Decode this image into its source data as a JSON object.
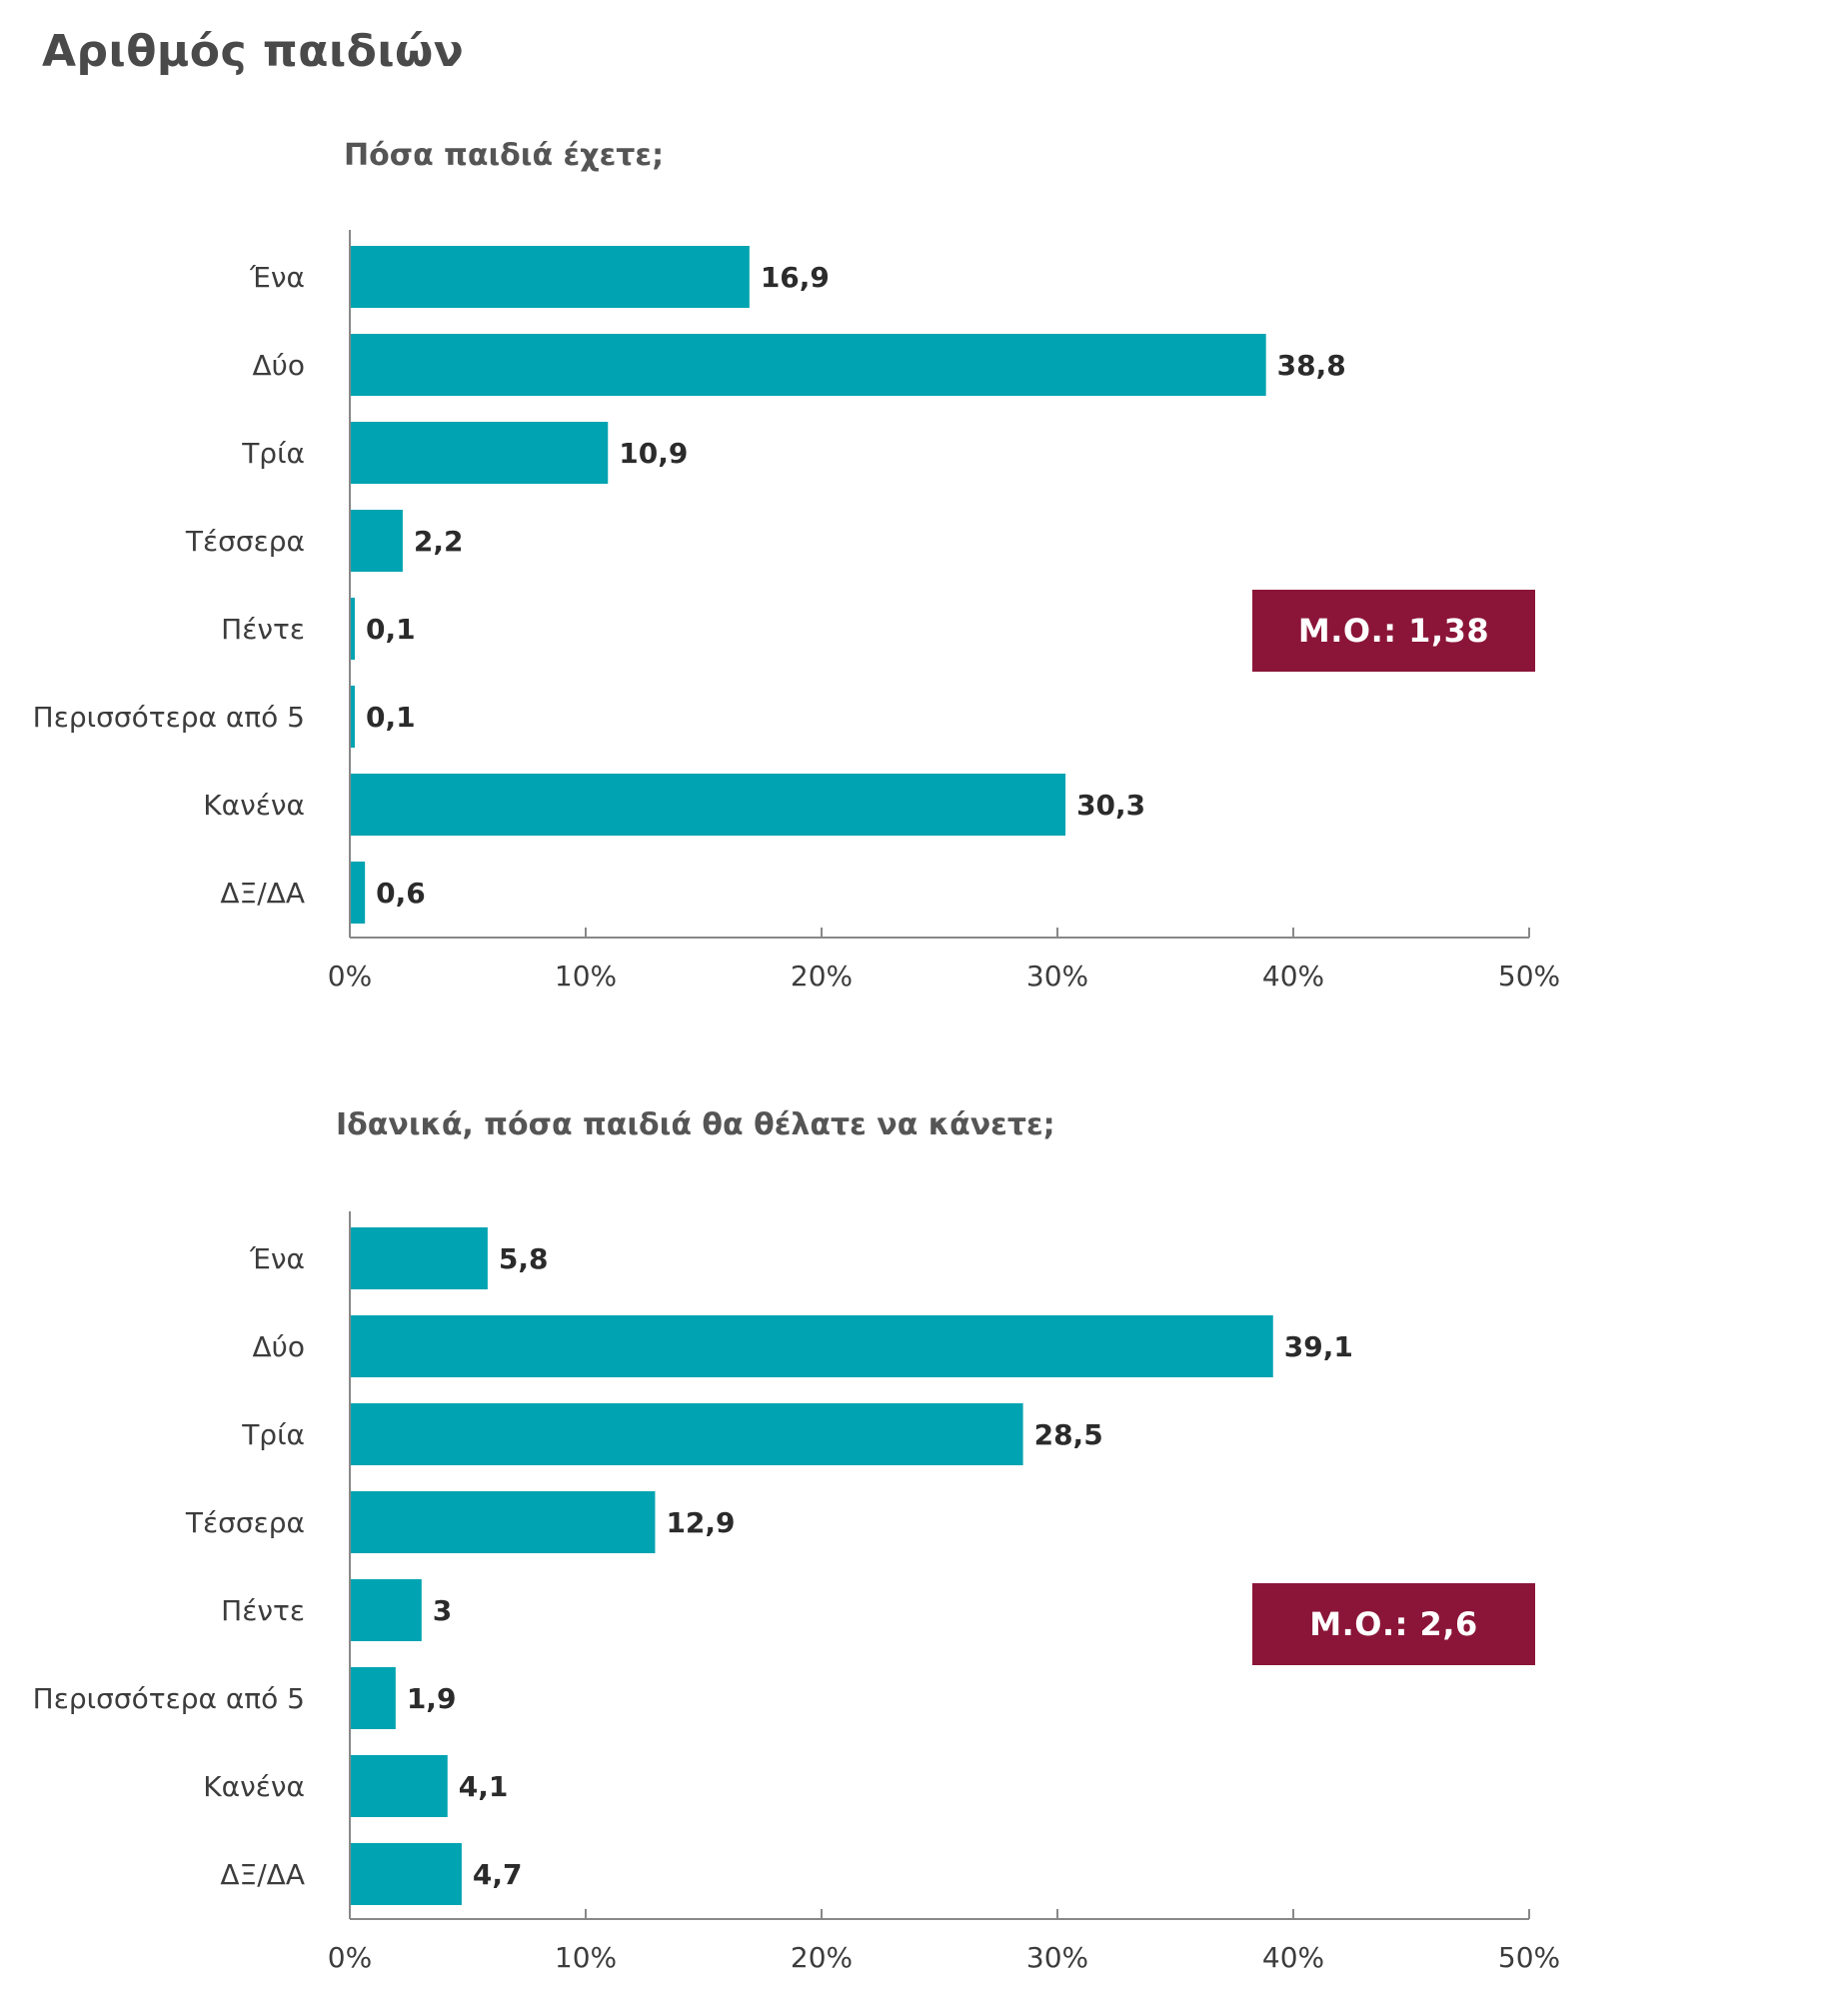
{
  "page_title": "Αριθμός παιδιών",
  "colors": {
    "bar": "#00a3b1",
    "mean_box": "#8b1538",
    "axis": "#888888"
  },
  "chart_data": [
    {
      "type": "bar",
      "orientation": "horizontal",
      "title": "Πόσα παιδιά έχετε;",
      "categories": [
        "Ένα",
        "Δύο",
        "Τρία",
        "Τέσσερα",
        "Πέντε",
        "Περισσότερα από 5",
        "Κανένα",
        "ΔΞ/ΔΑ"
      ],
      "values": [
        16.9,
        38.8,
        10.9,
        2.2,
        0.1,
        0.1,
        30.3,
        0.6
      ],
      "value_labels": [
        "16,9",
        "38,8",
        "10,9",
        "2,2",
        "0,1",
        "0,1",
        "30,3",
        "0,6"
      ],
      "xlim": [
        0,
        50
      ],
      "ticks": [
        "0%",
        "10%",
        "20%",
        "30%",
        "40%",
        "50%"
      ],
      "mean_label": "Μ.Ο.: 1,38",
      "grid": false
    },
    {
      "type": "bar",
      "orientation": "horizontal",
      "title": "Ιδανικά, πόσα παιδιά θα θέλατε να κάνετε;",
      "categories": [
        "Ένα",
        "Δύο",
        "Τρία",
        "Τέσσερα",
        "Πέντε",
        "Περισσότερα από 5",
        "Κανένα",
        "ΔΞ/ΔΑ"
      ],
      "values": [
        5.8,
        39.1,
        28.5,
        12.9,
        3,
        1.9,
        4.1,
        4.7
      ],
      "value_labels": [
        "5,8",
        "39,1",
        "28,5",
        "12,9",
        "3",
        "1,9",
        "4,1",
        "4,7"
      ],
      "xlim": [
        0,
        50
      ],
      "ticks": [
        "0%",
        "10%",
        "20%",
        "30%",
        "40%",
        "50%"
      ],
      "mean_label": "Μ.Ο.: 2,6",
      "grid": false
    }
  ]
}
